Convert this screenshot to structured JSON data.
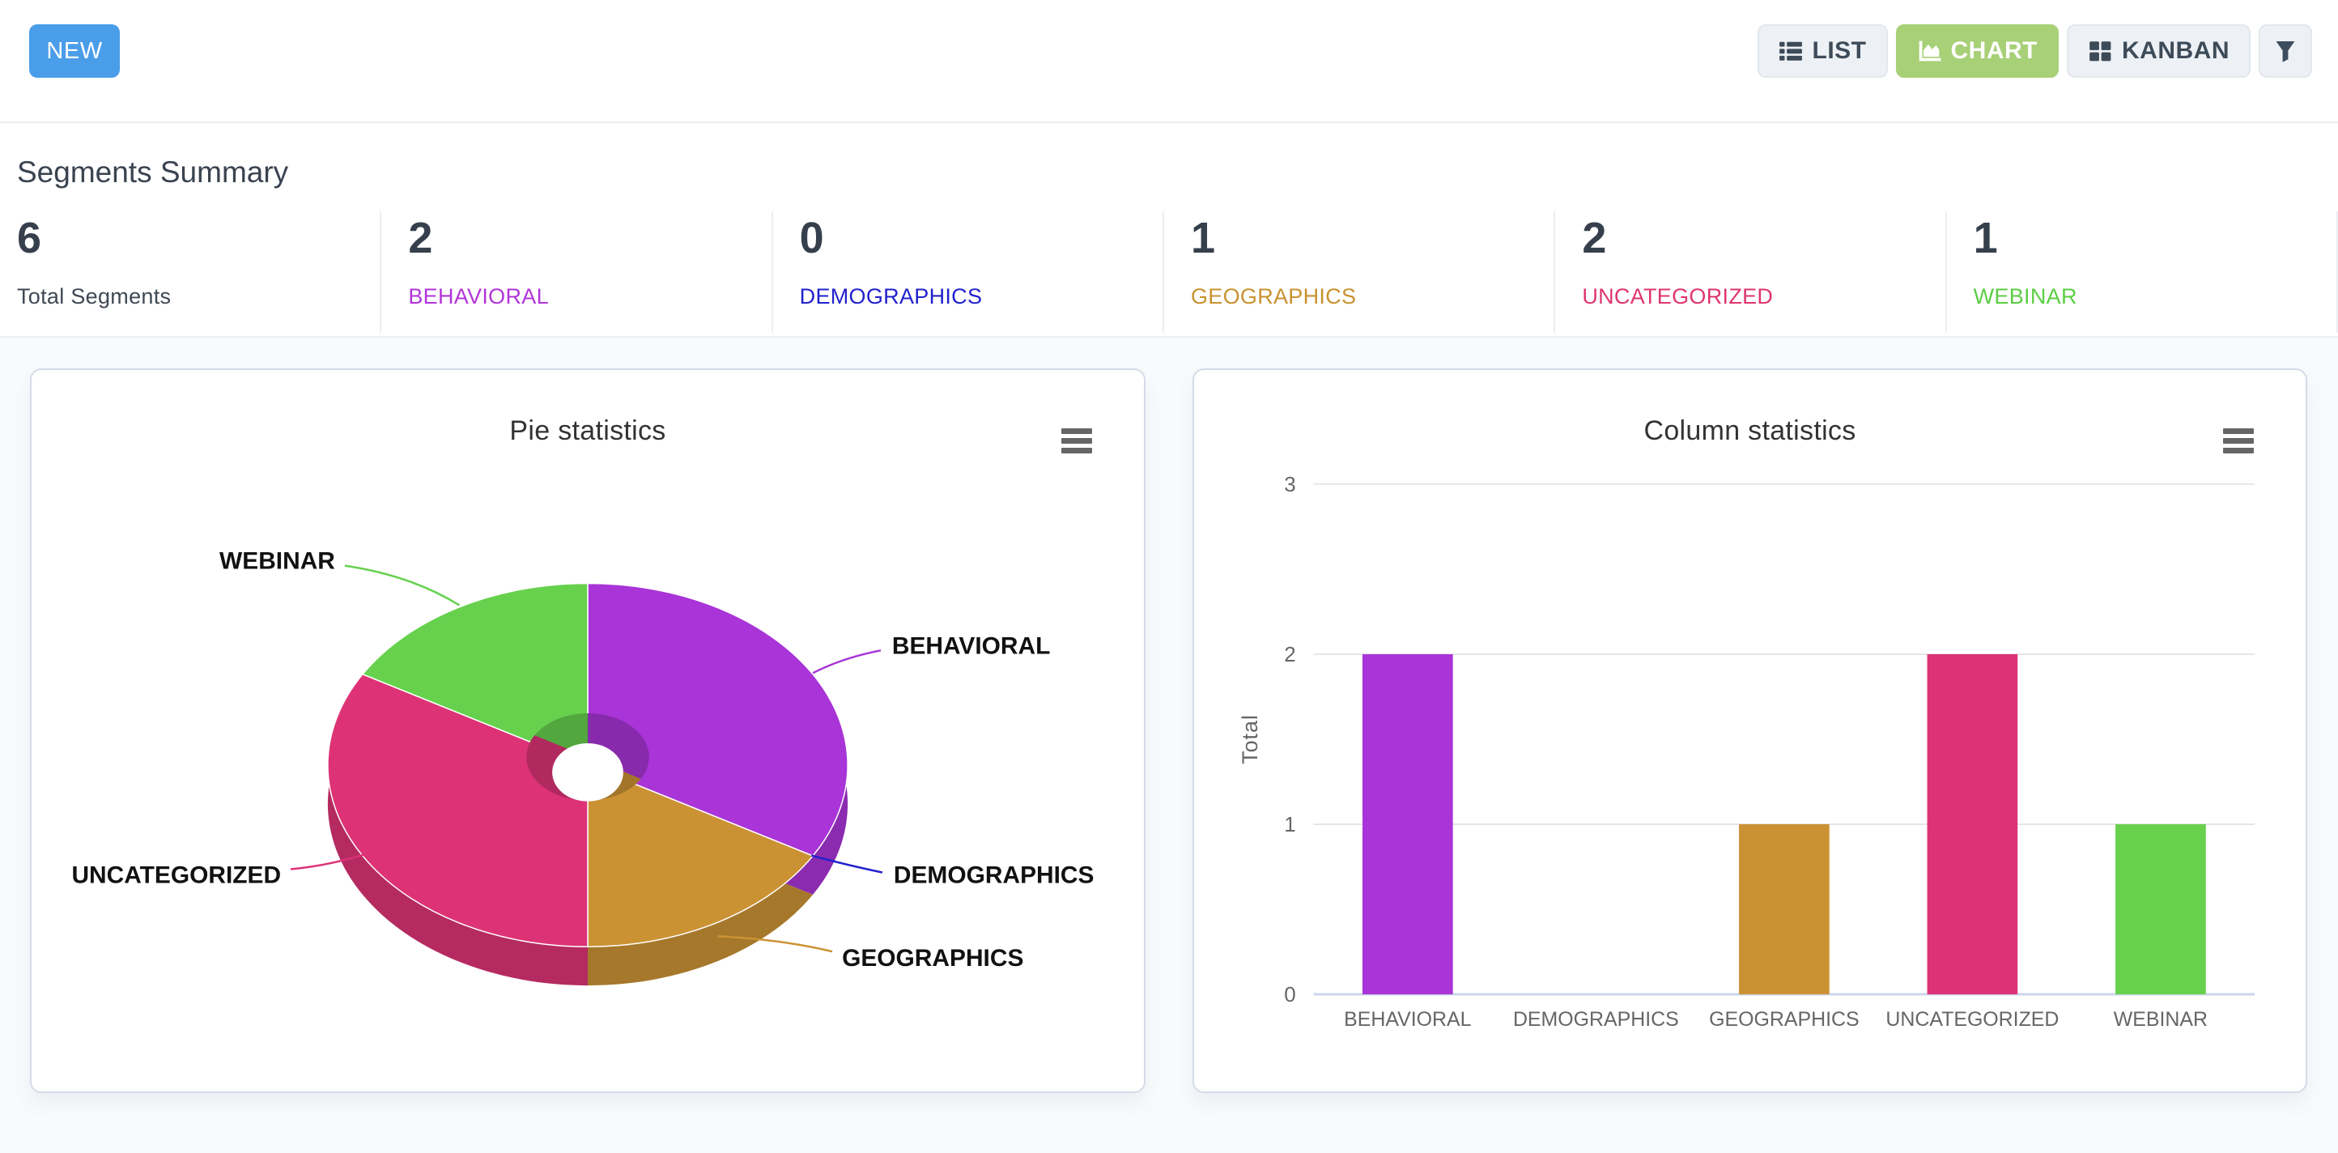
{
  "header": {
    "new_button": "NEW",
    "view_buttons": [
      {
        "label": "LIST",
        "icon": "list-icon",
        "active": false
      },
      {
        "label": "CHART",
        "icon": "chart-icon",
        "active": true
      },
      {
        "label": "KANBAN",
        "icon": "kanban-icon",
        "active": false
      }
    ],
    "filter_button_icon": "filter-icon",
    "active_color": "#a8d077",
    "new_color": "#4a9de9"
  },
  "summary": {
    "title": "Segments Summary",
    "stats": [
      {
        "value": "6",
        "label": "Total Segments",
        "color": "#3f4854"
      },
      {
        "value": "2",
        "label": "BEHAVIORAL",
        "color": "#b235d9"
      },
      {
        "value": "0",
        "label": "DEMOGRAPHICS",
        "color": "#2222cc"
      },
      {
        "value": "1",
        "label": "GEOGRAPHICS",
        "color": "#c8922f"
      },
      {
        "value": "2",
        "label": "UNCATEGORIZED",
        "color": "#df356f"
      },
      {
        "value": "1",
        "label": "WEBINAR",
        "color": "#5bce43"
      }
    ]
  },
  "chart_data": [
    {
      "type": "pie",
      "title": "Pie statistics",
      "donut": true,
      "three_d": true,
      "menu_icon": "hamburger-menu-icon",
      "categories": [
        "BEHAVIORAL",
        "DEMOGRAPHICS",
        "GEOGRAPHICS",
        "UNCATEGORIZED",
        "WEBINAR"
      ],
      "values": [
        2,
        0,
        1,
        2,
        1
      ],
      "colors": [
        "#a934d7",
        "#2222cc",
        "#cb9234",
        "#dd3376",
        "#67d14e"
      ],
      "label_color": "#111111"
    },
    {
      "type": "bar",
      "title": "Column statistics",
      "menu_icon": "hamburger-menu-icon",
      "categories": [
        "BEHAVIORAL",
        "DEMOGRAPHICS",
        "GEOGRAPHICS",
        "UNCATEGORIZED",
        "WEBINAR"
      ],
      "values": [
        2,
        0,
        1,
        2,
        1
      ],
      "colors": [
        "#a934d7",
        "#2222cc",
        "#cb9234",
        "#dd3376",
        "#67d14e"
      ],
      "xlabel": "",
      "ylabel": "Total",
      "ylim": [
        0,
        3
      ],
      "yticks": [
        0,
        1,
        2,
        3
      ],
      "grid": true,
      "grid_color": "#e6e6e6",
      "axis_line_color": "#ccd6eb",
      "axis_text_color": "#666666"
    }
  ]
}
